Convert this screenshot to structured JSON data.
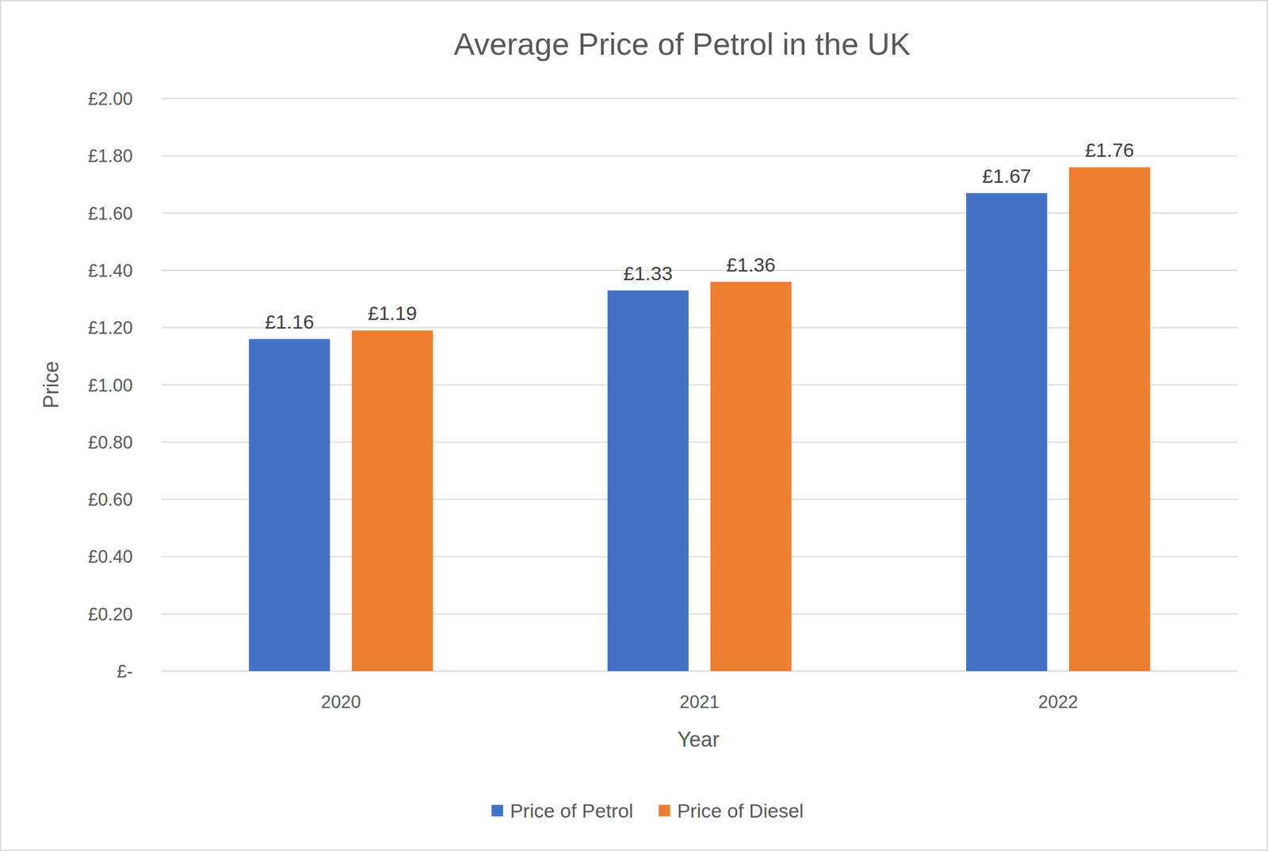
{
  "chart_data": {
    "type": "bar",
    "title": "Average Price of Petrol in the UK",
    "x_label": "Year",
    "y_label": "Price",
    "categories": [
      "2020",
      "2021",
      "2022"
    ],
    "series": [
      {
        "name": "Price of Petrol",
        "color": "#4472c4",
        "values": [
          1.16,
          1.33,
          1.67
        ],
        "value_labels": [
          "£1.16",
          "£1.33",
          "£1.67"
        ]
      },
      {
        "name": "Price of Diesel",
        "color": "#ed7d31",
        "values": [
          1.19,
          1.36,
          1.76
        ],
        "value_labels": [
          "£1.19",
          "£1.36",
          "£1.76"
        ]
      }
    ],
    "ylim": [
      0,
      2
    ],
    "yticks": [
      {
        "value": 0,
        "label": "£-"
      },
      {
        "value": 0.2,
        "label": "£0.20"
      },
      {
        "value": 0.4,
        "label": "£0.40"
      },
      {
        "value": 0.6,
        "label": "£0.60"
      },
      {
        "value": 0.8,
        "label": "£0.80"
      },
      {
        "value": 1,
        "label": "£1.00"
      },
      {
        "value": 1.2,
        "label": "£1.20"
      },
      {
        "value": 1.4,
        "label": "£1.40"
      },
      {
        "value": 1.6,
        "label": "£1.60"
      },
      {
        "value": 1.8,
        "label": "£1.80"
      },
      {
        "value": 2,
        "label": "£2.00"
      }
    ],
    "grid": true,
    "legend": "bottom",
    "data_labels": true
  }
}
